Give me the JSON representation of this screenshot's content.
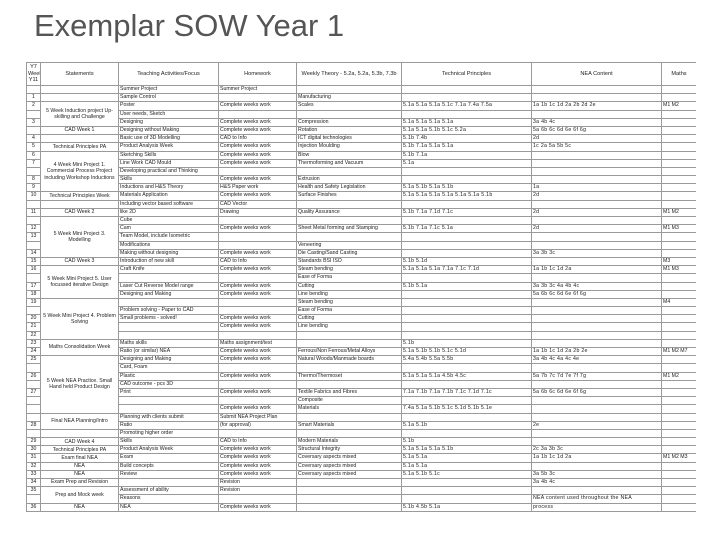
{
  "title": "Exemplar SOW Year 1",
  "columns": [
    "Y7 Week Y11",
    "Statements",
    "Teaching Activities/Focus",
    "Homework",
    "Weekly Theory - 5.2a, 5.2a, 5.3b, 7.3b",
    "Technical Principles",
    "NEA Content",
    "Maths"
  ],
  "rows": [
    {
      "wk": "",
      "act": "Summer Project",
      "hw": "Summer Project",
      "th": "",
      "tp": "",
      "nea": "",
      "maths": ""
    },
    {
      "wk": "1",
      "act": "Sample Control",
      "hw": "",
      "th": "Manufacturing",
      "tp": "",
      "nea": "",
      "maths": ""
    },
    {
      "wk": "2",
      "act": "Poster",
      "hw": "Complete weeks work",
      "th": "Scales",
      "tp": "5.1a 5.1a 5.1a 5.1c 7.1a 7.4a 7.5a",
      "nea": "1a 1b 1c 1d 2a 2b 2d 2e",
      "maths": "M1 M2"
    },
    {
      "wk": "",
      "act": "User needs, Sketch",
      "hw": "",
      "th": "",
      "tp": "",
      "nea": "",
      "maths": ""
    },
    {
      "wk": "3",
      "act": "Designing",
      "hw": "Complete weeks work",
      "th": "Compression",
      "tp": "5.1a 5.1a 5.1a 5.1a",
      "nea": "3a 4b 4c",
      "maths": ""
    },
    {
      "wk": "",
      "act": "Designing without Making",
      "hw": "Complete weeks work",
      "th": "Rotation",
      "tp": "5.1a 5.1a 5.1b 5.1c 5.2a",
      "nea": "5a 6b 6c 6d 6e 6f 6g",
      "maths": ""
    },
    {
      "wk": "4",
      "act": "Basic use of 3D Modelling",
      "hw": "CAD to Info",
      "th": "ICT digital technologies",
      "tp": "5.1b 7.4b",
      "nea": "2d",
      "maths": ""
    },
    {
      "wk": "5",
      "act": "Product Analysis Week",
      "hw": "Complete weeks work",
      "th": "Injection Moulding",
      "tp": "5.1b 7.1a 5.1a 5.1a",
      "nea": "1c 2a 5a 5b 5c",
      "maths": ""
    },
    {
      "wk": "6",
      "act": "Sketching Skills",
      "hw": "Complete weeks work",
      "th": "Blow",
      "tp": "5.1b 7.1a",
      "nea": "",
      "maths": ""
    },
    {
      "wk": "7",
      "act": "Line Work CAD Mould",
      "hw": "Complete weeks work",
      "th": "Thermoforming and Vacuum",
      "tp": "5.1a",
      "nea": "",
      "maths": ""
    },
    {
      "wk": "",
      "act": "Developing practical and Thinking",
      "hw": "",
      "th": "",
      "tp": "",
      "nea": "",
      "maths": ""
    },
    {
      "wk": "8",
      "act": "Skills",
      "hw": "Complete weeks work",
      "th": "Extrusion",
      "tp": "",
      "nea": "",
      "maths": ""
    },
    {
      "wk": "9",
      "act": "Inductions and H&S Theory",
      "hw": "H&S Paper work",
      "th": "Health and Safety Legislation",
      "tp": "5.1a 5.1b 5.1a 5.1b",
      "nea": "1a",
      "maths": ""
    },
    {
      "wk": "10",
      "act": "Materials Application",
      "hw": "Complete weeks work",
      "th": "Surface Finishes",
      "tp": "5.1a 5.1a 5.1a 5.1a 5.1a 5.1a 5.1b",
      "nea": "2d",
      "maths": ""
    },
    {
      "wk": "",
      "act": "Including vector based software",
      "hw": "CAD Vector",
      "th": "",
      "tp": "",
      "nea": "",
      "maths": ""
    },
    {
      "wk": "11",
      "act": "like 2D",
      "hw": "Drawing",
      "th": "Quality Assurance",
      "tp": "5.1b 7.1a 7.1d 7.1c",
      "nea": "2d",
      "maths": "M1 M2"
    },
    {
      "wk": "",
      "act": "Cube",
      "hw": "",
      "th": "",
      "tp": "",
      "nea": "",
      "maths": ""
    },
    {
      "wk": "12",
      "act": "Cam",
      "hw": "Complete weeks work",
      "th": "Sheet Metal forming and Stamping",
      "tp": "5.1b 7.1a 7.1c 5.1a",
      "nea": "2d",
      "maths": "M1 M3"
    },
    {
      "wk": "13",
      "act": "Team Model, include Isometric",
      "hw": "",
      "th": "",
      "tp": "",
      "nea": "",
      "maths": ""
    },
    {
      "wk": "",
      "act": "Modifications",
      "hw": "",
      "th": "Veneering",
      "tp": "",
      "nea": "",
      "maths": ""
    },
    {
      "wk": "14",
      "act": "Making without designing",
      "hw": "Complete weeks work",
      "th": "Die Casting/Sand Casting",
      "tp": "",
      "nea": "3a 3b 3c",
      "maths": ""
    },
    {
      "wk": "15",
      "act": "Introduction of new skill",
      "hw": "CAD to Info",
      "th": "Standards BSI ISO",
      "tp": "5.1b 5.1d",
      "nea": "",
      "maths": "M3"
    },
    {
      "wk": "16",
      "act": "Craft Knife",
      "hw": "Complete weeks work",
      "th": "Steam bending",
      "tp": "5.1a 5.1a 5.1a 7.1a 7.1c 7.1d",
      "nea": "1a 1b 1c 1d 2a",
      "maths": "M1 M3"
    },
    {
      "wk": "",
      "act": "",
      "hw": "",
      "th": "Ease of Forma",
      "tp": "",
      "nea": "",
      "maths": ""
    },
    {
      "wk": "17",
      "act": "Laser Cut Reverse Model range",
      "hw": "Complete weeks work",
      "th": "Cutting",
      "tp": "5.1b 5.1a",
      "nea": "3a 3b 3c 4a 4b 4c",
      "maths": ""
    },
    {
      "wk": "18",
      "act": "Designing and Making",
      "hw": "Complete weeks work",
      "th": "Line bending",
      "tp": "",
      "nea": "5a 6b 6c 6d 6e 6f 6g",
      "maths": ""
    },
    {
      "wk": "19",
      "act": "",
      "hw": "",
      "th": "Steam bending",
      "tp": "",
      "nea": "",
      "maths": "M4"
    },
    {
      "wk": "",
      "act": "Problem solving - Paper to CAD",
      "hw": "",
      "th": "Ease of Forma",
      "tp": "",
      "nea": "",
      "maths": ""
    },
    {
      "wk": "20",
      "act": "Small problems - solved!",
      "hw": "Complete weeks work",
      "th": "Cutting",
      "tp": "",
      "nea": "",
      "maths": ""
    },
    {
      "wk": "21",
      "act": "",
      "hw": "Complete weeks work",
      "th": "Line bending",
      "tp": "",
      "nea": "",
      "maths": ""
    },
    {
      "wk": "22",
      "act": "",
      "hw": "",
      "th": "",
      "tp": "",
      "nea": "",
      "maths": ""
    },
    {
      "wk": "23",
      "act": "Maths skills",
      "hw": "Maths assignment/test",
      "th": "",
      "tp": "5.1b",
      "nea": "",
      "maths": ""
    },
    {
      "wk": "24",
      "act": "Ratio (or similar) NEA",
      "hw": "Complete weeks work",
      "th": "Ferrous/Non Ferrous/Metal Alloys",
      "tp": "5.1a 5.1b 5.1b 5.1c 5.1d",
      "nea": "1a 1b 1c 1d 2a 2b 2e",
      "maths": "M1 M2 M7"
    },
    {
      "wk": "25",
      "act": "Designing and Making",
      "hw": "Complete weeks work",
      "th": "Natural Woods/Manmade boards",
      "tp": "5.4a 5.4b 5.5a 5.5b",
      "nea": "3a 4b 4c 4a 4c 4e",
      "maths": ""
    },
    {
      "wk": "",
      "act": "Card, Foam",
      "hw": "",
      "th": "",
      "tp": "",
      "nea": "",
      "maths": ""
    },
    {
      "wk": "26",
      "act": "Plastic",
      "hw": "Complete weeks work",
      "th": "Thermo/Thermoset",
      "tp": "5.1a 5.1a 5.1a 4.5b 4.5c",
      "nea": "5a 7b 7c 7d 7e 7f 7g",
      "maths": "M1 M2"
    },
    {
      "wk": "",
      "act": "CAD outcome - pcs 3D",
      "hw": "",
      "th": "",
      "tp": "",
      "nea": "",
      "maths": ""
    },
    {
      "wk": "27",
      "act": "Print",
      "hw": "Complete weeks work",
      "th": "Textile Fabrics and Fibres",
      "tp": "7.1a 7.1b 7.1a 7.1b 7.1c 7.1d 7.1c",
      "nea": "5a 6b 6c 6d 6e 6f 6g",
      "maths": ""
    },
    {
      "wk": "",
      "act": "",
      "hw": "",
      "th": "Composite",
      "tp": "",
      "nea": "",
      "maths": ""
    },
    {
      "wk": "",
      "act": "",
      "hw": "Complete weeks work",
      "th": "Materials",
      "tp": "7.4a 5.1a 5.1b 5.1c 5.1d 5.1b 5.1e",
      "nea": "",
      "maths": ""
    },
    {
      "wk": "",
      "act": "Planning with clients submit",
      "hw": "Submit NEA Project Plan",
      "th": "",
      "tp": "",
      "nea": "",
      "maths": ""
    },
    {
      "wk": "28",
      "act": "Ratio",
      "hw": "(for approval)",
      "th": "Smart Materials",
      "tp": "5.1a 5.1b",
      "nea": "2e",
      "maths": ""
    },
    {
      "wk": "",
      "act": "Promoting higher order",
      "hw": "",
      "th": "",
      "tp": "",
      "nea": "",
      "maths": ""
    },
    {
      "wk": "29",
      "act": "Skills",
      "hw": "CAD to Info",
      "th": "Modern Materials",
      "tp": "5.1b",
      "nea": "",
      "maths": ""
    },
    {
      "wk": "30",
      "act": "Product Analysis Week",
      "hw": "Complete weeks work",
      "th": "Structural Integrity",
      "tp": "5.1a 5.1a 5.1a 5.1b",
      "nea": "2c 3a 3b 3c",
      "maths": ""
    },
    {
      "wk": "31",
      "act": "Exam",
      "hw": "Complete weeks work",
      "th": "Coversary aspects mixed",
      "tp": "5.1a 5.1a",
      "nea": "1a 1b 1c 1d 2a",
      "maths": "M1 M2 M3"
    },
    {
      "wk": "32",
      "act": "Build concepts",
      "hw": "Complete weeks work",
      "th": "Coversary aspects mixed",
      "tp": "5.1a 5.1a",
      "nea": "",
      "maths": ""
    },
    {
      "wk": "33",
      "act": "Review",
      "hw": "Complete weeks work",
      "th": "Coversary aspects mixed",
      "tp": "5.1a 5.1b 5.1c",
      "nea": "3a 5b 3c",
      "maths": ""
    },
    {
      "wk": "34",
      "act": "",
      "hw": "Revision",
      "th": "",
      "tp": "",
      "nea": "3a 4b 4c",
      "maths": ""
    },
    {
      "wk": "35",
      "act": "Assessment of ability",
      "hw": "Revision",
      "th": "",
      "tp": "",
      "nea": "",
      "maths": ""
    },
    {
      "wk": "",
      "act": "Reasons",
      "hw": "",
      "th": "",
      "tp": "",
      "nea": "NEA content used throughout the NEA",
      "maths": ""
    },
    {
      "wk": "36",
      "act": "NEA",
      "hw": "Complete weeks work",
      "th": "",
      "tp": "5.1b 4.5b 5.1a",
      "nea": "process",
      "maths": ""
    }
  ],
  "statements": [
    {
      "row": 2,
      "span": 3,
      "text": "5 Week Induction project Up-skilling and Challenge"
    },
    {
      "row": 5,
      "span": 1,
      "text": "CAD Week 1"
    },
    {
      "row": 7,
      "span": 1,
      "text": "Technical Principles PA"
    },
    {
      "row": 8,
      "span": 5,
      "text": "4 Week Mini Project 1. Commercial Process Project including Workshop Inductions"
    },
    {
      "row": 13,
      "span": 1,
      "text": "Technical Principles Week"
    },
    {
      "row": 15,
      "span": 1,
      "text": "CAD Week 2"
    },
    {
      "row": 16,
      "span": 5,
      "text": "5 Week Mini Project 3. Modelling"
    },
    {
      "row": 21,
      "span": 1,
      "text": "CAD Week 3"
    },
    {
      "row": 22,
      "span": 4,
      "text": "5 Week Mini Project 5. User focussed iterative Design"
    },
    {
      "row": 26,
      "span": 5,
      "text": "5 Week Mini Project 4. Problem Solving"
    },
    {
      "row": 31,
      "span": 2,
      "text": "Maths Consolidation Week"
    },
    {
      "row": 33,
      "span": 7,
      "text": "5 Week NEA Practice. Small Hand held Product Design"
    },
    {
      "row": 40,
      "span": 2,
      "text": "Final NEA Planning/Intro"
    },
    {
      "row": 43,
      "span": 1,
      "text": "CAD Week 4"
    },
    {
      "row": 44,
      "span": 1,
      "text": "Technical Principles PA"
    },
    {
      "row": 45,
      "span": 1,
      "text": "Exam final NEA"
    },
    {
      "row": 46,
      "span": 1,
      "text": "NEA"
    },
    {
      "row": 47,
      "span": 1,
      "text": "NEA"
    },
    {
      "row": 48,
      "span": 1,
      "text": "Exam Prep and Revision"
    },
    {
      "row": 49,
      "span": 2,
      "text": "Prep and Mock week"
    },
    {
      "row": 51,
      "span": 1,
      "text": "NEA"
    }
  ]
}
